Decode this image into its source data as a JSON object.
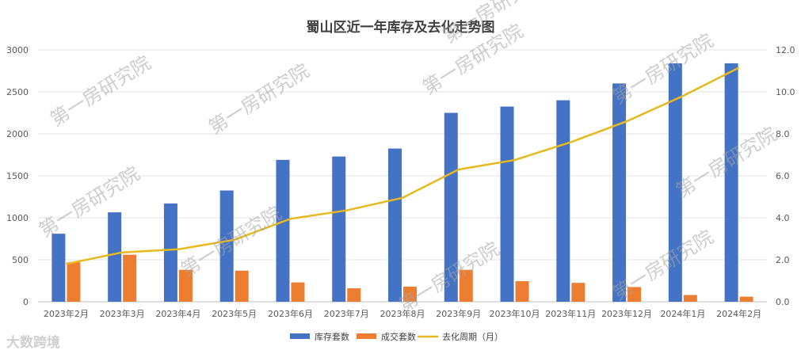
{
  "chart_data": {
    "type": "bar",
    "title": "蜀山区近一年库存及去化走势图",
    "categories": [
      "2023年2月",
      "2023年3月",
      "2023年4月",
      "2023年5月",
      "2023年6月",
      "2023年7月",
      "2023年8月",
      "2023年9月",
      "2023年10月",
      "2023年11月",
      "2023年12月",
      "2024年1月",
      "2024年2月"
    ],
    "series": [
      {
        "name": "库存套数",
        "kind": "bar",
        "axis": "left",
        "color": "#4472c4",
        "values": [
          810,
          1065,
          1170,
          1325,
          1690,
          1730,
          1825,
          2250,
          2325,
          2400,
          2600,
          2840,
          2840
        ]
      },
      {
        "name": "成交套数",
        "kind": "bar",
        "axis": "left",
        "color": "#ed7d31",
        "values": [
          470,
          560,
          380,
          370,
          230,
          160,
          180,
          380,
          245,
          225,
          175,
          80,
          60
        ]
      },
      {
        "name": "去化周期（月）",
        "kind": "line",
        "axis": "right",
        "color": "#e6b91e",
        "values": [
          1.8,
          2.35,
          2.5,
          2.95,
          3.95,
          4.35,
          4.95,
          6.3,
          6.75,
          7.6,
          8.6,
          9.8,
          11.15
        ]
      }
    ],
    "y_left": {
      "min": 0,
      "max": 3000,
      "ticks": [
        "0",
        "500",
        "1000",
        "1500",
        "2000",
        "2500",
        "3000"
      ]
    },
    "y_right": {
      "min": 0,
      "max": 12,
      "ticks": [
        "0.0",
        "2.0",
        "4.0",
        "6.0",
        "8.0",
        "10.0",
        "12.0"
      ]
    },
    "legend_position": "bottom",
    "grid": true
  },
  "watermark": "第一房研究院",
  "corner_logo": "大数跨境"
}
